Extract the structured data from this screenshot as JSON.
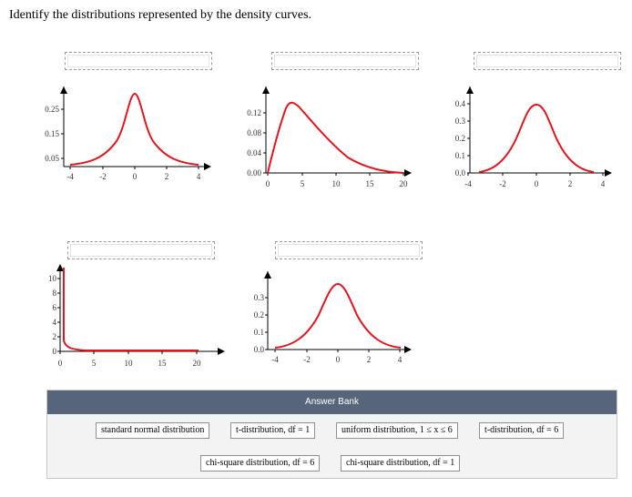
{
  "question": "Identify the distributions represented by the density curves.",
  "plots": [
    {
      "name": "plot-1",
      "x_ticks": [
        "-4",
        "-2",
        "0",
        "2",
        "4"
      ],
      "y_ticks": [
        "0.05",
        "0.15",
        "0.25"
      ],
      "curve": "t-like, peak 0.32 at x=0, range -4 to 4"
    },
    {
      "name": "plot-2",
      "x_ticks": [
        "0",
        "5",
        "10",
        "15",
        "20"
      ],
      "y_ticks": [
        "0.00",
        "0.04",
        "0.08",
        "0.12"
      ],
      "curve": "right-skewed, peak 0.13 near x=4"
    },
    {
      "name": "plot-3",
      "x_ticks": [
        "-4",
        "-2",
        "0",
        "2",
        "4"
      ],
      "y_ticks": [
        "0.0",
        "0.1",
        "0.2",
        "0.3",
        "0.4"
      ],
      "curve": "bell, peak 0.40 at x=0"
    },
    {
      "name": "plot-4",
      "x_ticks": [
        "0",
        "5",
        "10",
        "15",
        "20"
      ],
      "y_ticks": [
        "0",
        "2",
        "4",
        "6",
        "8",
        "10"
      ],
      "curve": "spike near 0, decays quickly to ~0"
    },
    {
      "name": "plot-5",
      "x_ticks": [
        "-4",
        "-2",
        "0",
        "2",
        "4"
      ],
      "y_ticks": [
        "0.0",
        "0.1",
        "0.2",
        "0.3"
      ],
      "curve": "bell, peak ~0.36 at x=0"
    }
  ],
  "answer_bank": {
    "title": "Answer Bank",
    "chips": [
      "standard normal distribution",
      "t-distribution, df = 1",
      "uniform distribution, 1 ≤ x ≤ 6",
      "t-distribution, df = 6",
      "chi-square distribution, df = 6",
      "chi-square distribution, df = 1"
    ]
  },
  "colors": {
    "curve": "#e8141c",
    "bank_header": "#56657a"
  }
}
